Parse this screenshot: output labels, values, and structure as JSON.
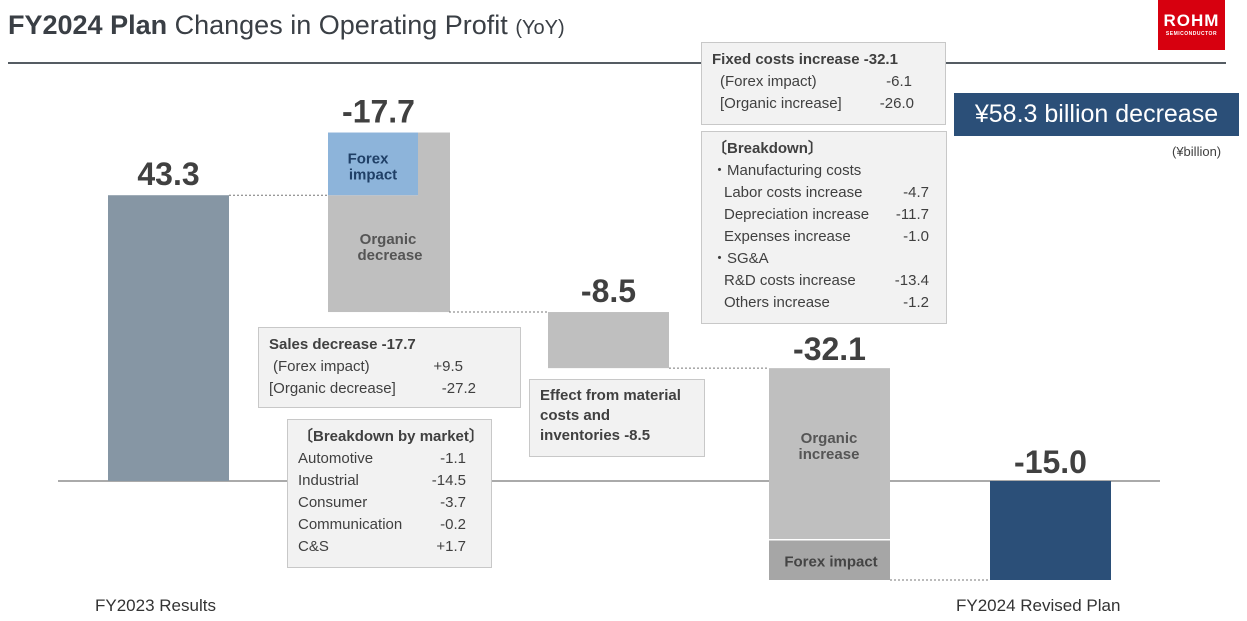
{
  "header": {
    "title_bold": "FY2024 Plan",
    "title_rest": "Changes in Operating Profit",
    "title_suffix": "(YoY)",
    "logo_text": "ROHM",
    "logo_sub": "SEMICONDUCTOR"
  },
  "headline": "¥58.3 billion decrease",
  "unit": "(¥billion)",
  "chart_data": {
    "type": "waterfall",
    "categories": [
      "FY2023 Results",
      "Sales",
      "Material costs and inventories",
      "Fixed costs",
      "FY2024 Revised Plan"
    ],
    "value_labels": [
      "43.3",
      "-17.7",
      "-8.5",
      "-32.1",
      "-15.0"
    ],
    "steps": [
      {
        "label": "FY2023 Results",
        "value": 43.3,
        "kind": "total"
      },
      {
        "value": -17.7,
        "segments": [
          {
            "label": "Forex impact",
            "value": 9.5
          },
          {
            "label": "Organic decrease",
            "value": -27.2
          }
        ]
      },
      {
        "value": -8.5
      },
      {
        "value": -32.1,
        "segments": [
          {
            "label": "Organic increase",
            "value": -26.0
          },
          {
            "label": "Forex impact",
            "value": -6.1
          }
        ]
      },
      {
        "label": "FY2024 Revised Plan",
        "value": -15.0,
        "kind": "total"
      }
    ],
    "colors": {
      "start": "#8696a4",
      "change": "#bfbfbf",
      "forex_up": "#8db4da",
      "end": "#2b4f78"
    },
    "segment_labels": {
      "forex": "Forex impact",
      "organic_decrease": "Organic decrease",
      "organic_increase": "Organic increase",
      "forex2": "Forex impact"
    }
  },
  "sales_box": {
    "title": "Sales decrease -17.7",
    "rows": [
      {
        "k": "(Forex impact)",
        "v": "+9.5"
      },
      {
        "k": "[Organic decrease]",
        "v": "-27.2"
      }
    ]
  },
  "market_box": {
    "title": "〔Breakdown by market〕",
    "rows": [
      {
        "k": "Automotive",
        "v": "-1.1"
      },
      {
        "k": "Industrial",
        "v": "-14.5"
      },
      {
        "k": "Consumer",
        "v": "-3.7"
      },
      {
        "k": "Communication",
        "v": "-0.2"
      },
      {
        "k": "C&S",
        "v": "+1.7"
      }
    ]
  },
  "material_box": {
    "text": "Effect from material costs and inventories -8.5"
  },
  "fixed_box": {
    "title": "Fixed costs increase -32.1",
    "rows": [
      {
        "k": "(Forex impact)",
        "v": "-6.1"
      },
      {
        "k": "[Organic increase]",
        "v": "-26.0"
      }
    ]
  },
  "breakdown_box": {
    "title": "〔Breakdown〕",
    "group1": "・Manufacturing costs",
    "rows1": [
      {
        "k": "Labor costs increase",
        "v": "-4.7"
      },
      {
        "k": "Depreciation increase",
        "v": "-11.7"
      },
      {
        "k": "Expenses increase",
        "v": "-1.0"
      }
    ],
    "group2": "・SG&A",
    "rows2": [
      {
        "k": "R&D costs increase",
        "v": "-13.4"
      },
      {
        "k": "Others increase",
        "v": "-1.2"
      }
    ]
  }
}
